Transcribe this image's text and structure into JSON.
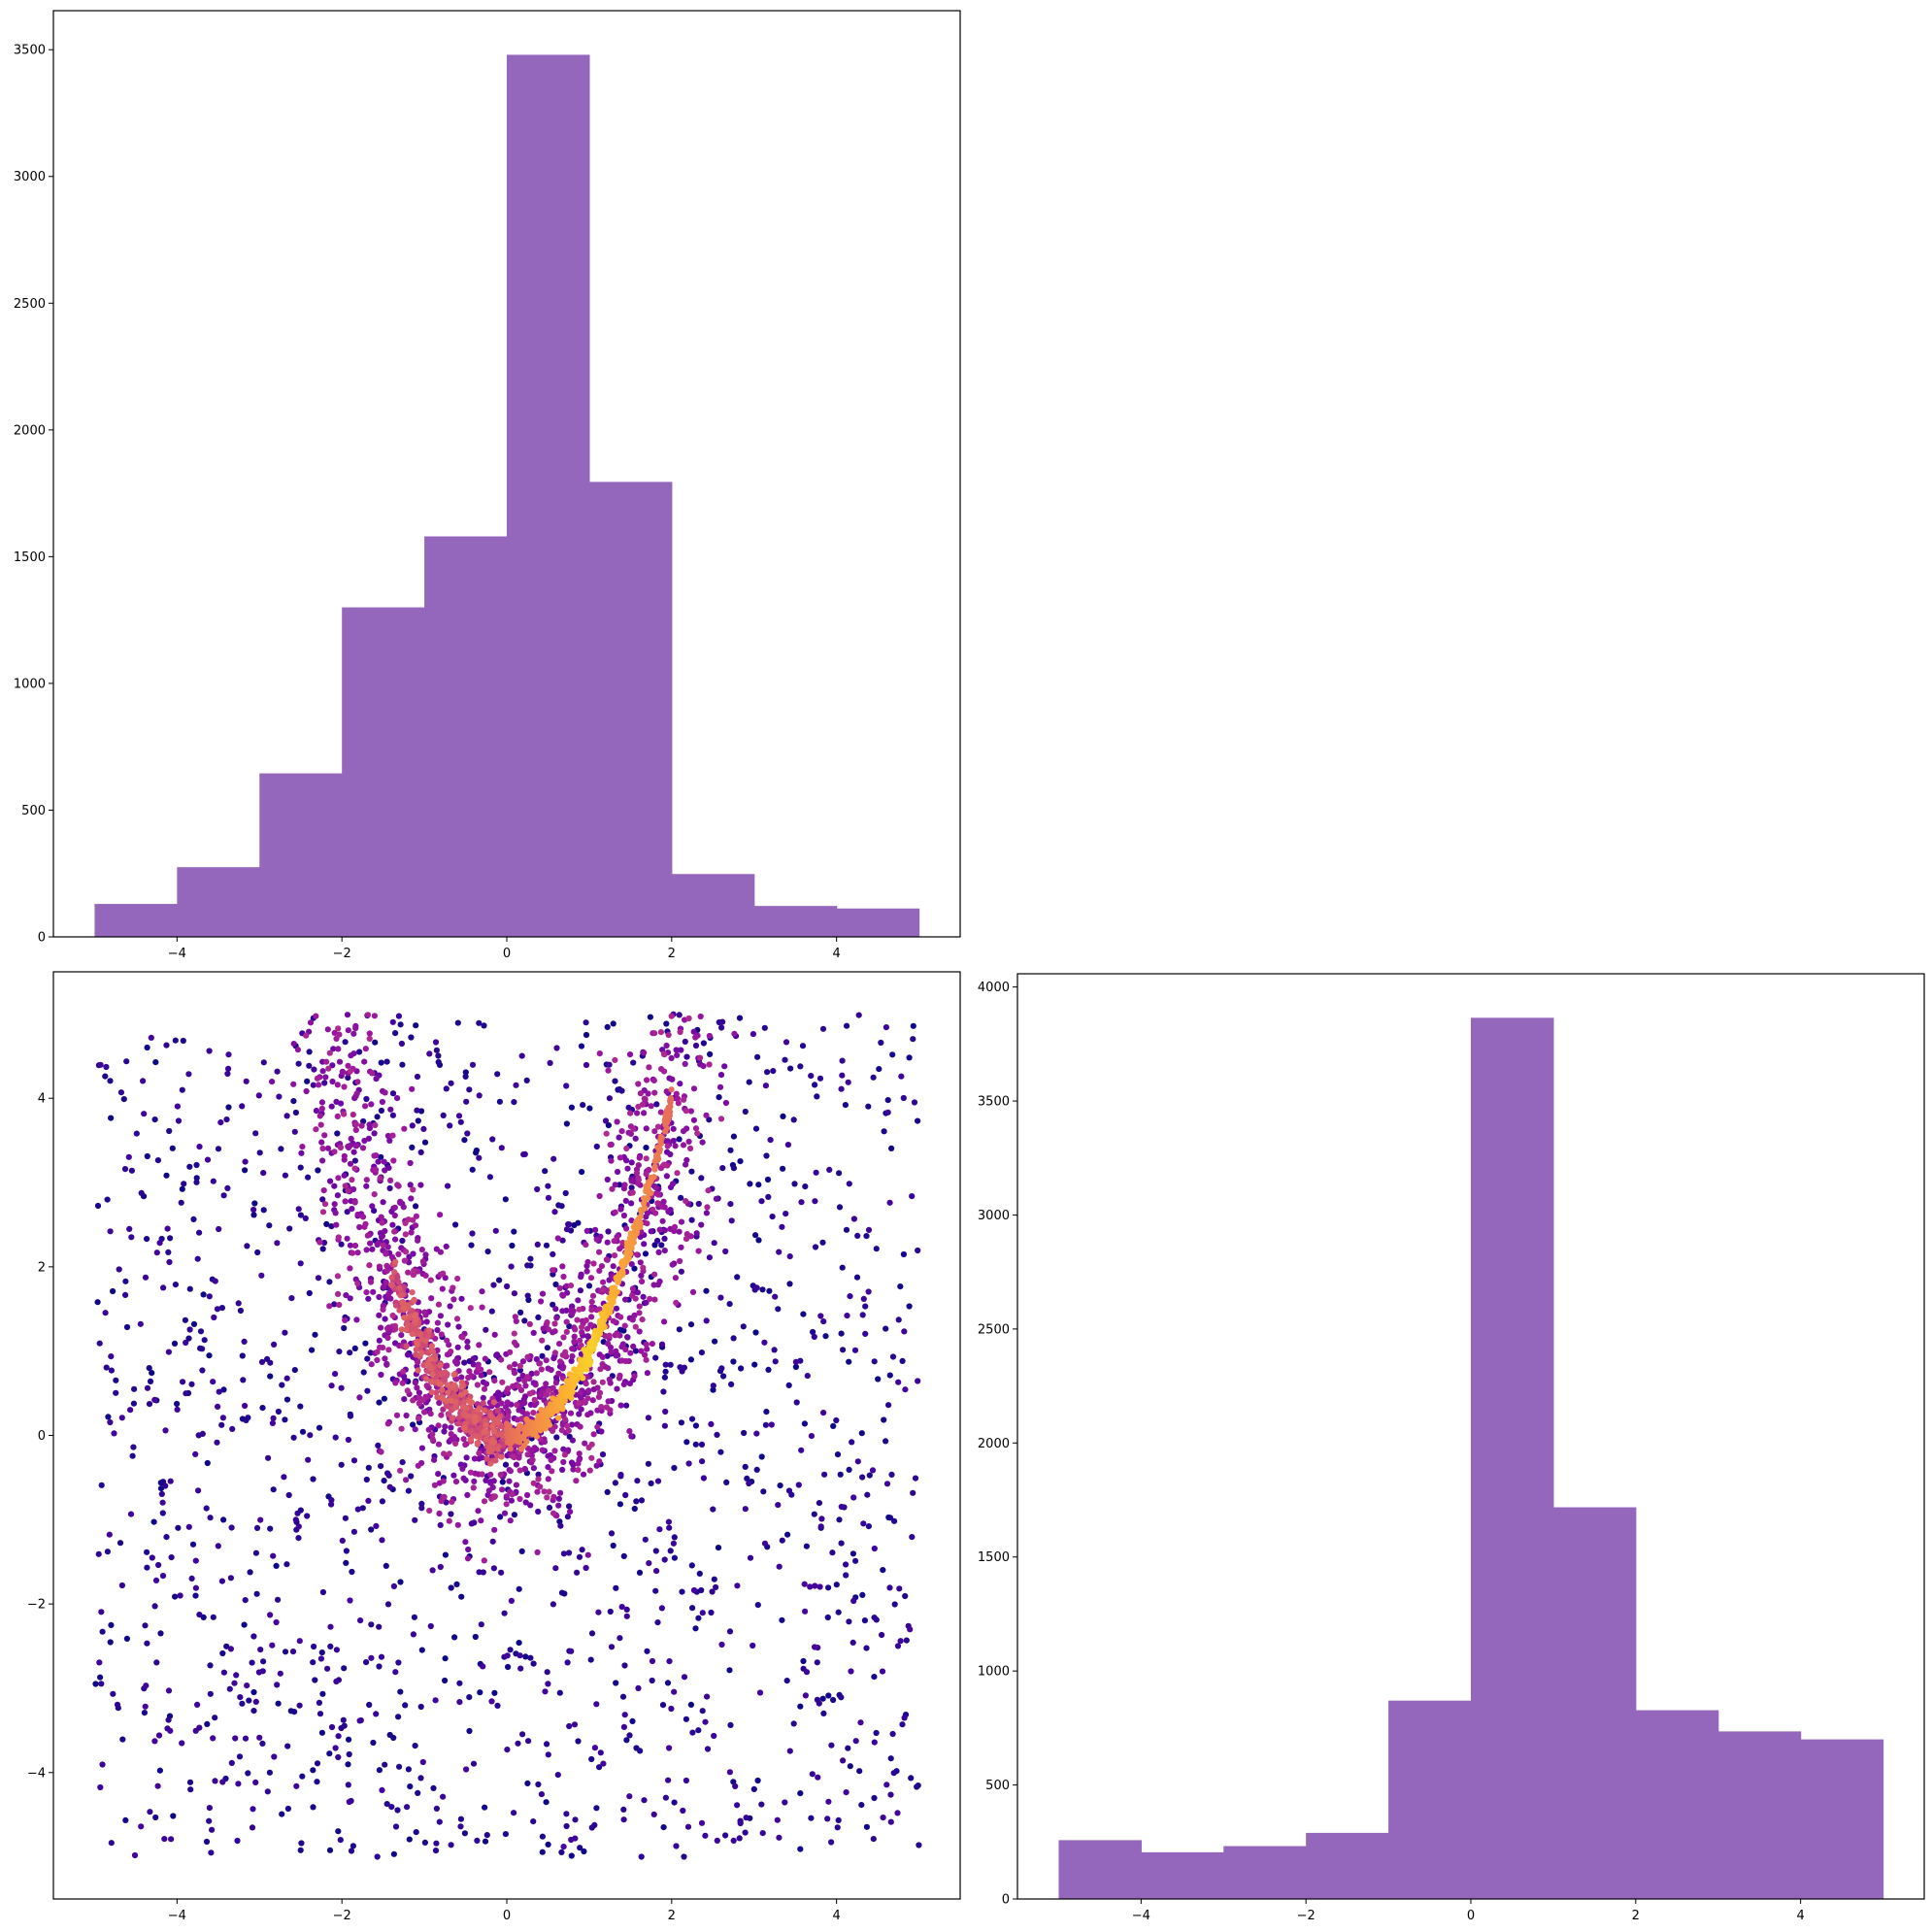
{
  "chart_data": [
    {
      "id": "hist-top-left",
      "type": "bar",
      "subtype": "histogram",
      "title": "",
      "xlabel": "",
      "ylabel": "",
      "bin_edges": [
        -5,
        -4,
        -3,
        -2,
        -1,
        0,
        1,
        2,
        3,
        4,
        5
      ],
      "values": [
        130,
        275,
        645,
        1300,
        1580,
        3480,
        1795,
        248,
        122,
        112
      ],
      "xlim": [
        -5.5,
        5.5
      ],
      "ylim": [
        0,
        3654
      ],
      "xticks": [
        -4,
        -2,
        0,
        2,
        4
      ],
      "yticks": [
        0,
        500,
        1000,
        1500,
        2000,
        2500,
        3000,
        3500
      ],
      "xtick_labels": [
        "−4",
        "−2",
        "0",
        "2",
        "4"
      ],
      "ytick_labels": [
        "0",
        "500",
        "1000",
        "1500",
        "2000",
        "2500",
        "3000",
        "3500"
      ],
      "color": "#9467bd",
      "grid": false
    },
    {
      "id": "scatter-bottom-left",
      "type": "scatter",
      "title": "",
      "xlabel": "",
      "ylabel": "",
      "description": "points colored by local density (plasma colormap): a dense parabola-like band y≈x² from about (-2, 4.8) through (0, 0) to (2, 4.5), plus uniform background noise over [-5, 5] × [-5, 5]",
      "xlim": [
        -5.5,
        5.5
      ],
      "ylim": [
        -5.5,
        5.5
      ],
      "xticks": [
        -4,
        -2,
        0,
        2,
        4
      ],
      "yticks": [
        -4,
        -2,
        0,
        2,
        4
      ],
      "xtick_labels": [
        "−4",
        "−2",
        "0",
        "2",
        "4"
      ],
      "ytick_labels": [
        "−4",
        "−2",
        "0",
        "2",
        "4"
      ],
      "colormap": [
        "#0d0887",
        "#5c01a6",
        "#9c179e",
        "#cc4778",
        "#ed7953",
        "#fdb42f",
        "#f0f921"
      ],
      "grid": false
    },
    {
      "id": "hist-bottom-right",
      "type": "bar",
      "subtype": "histogram",
      "title": "",
      "xlabel": "",
      "ylabel": "",
      "bin_edges": [
        -5,
        -4,
        -3,
        -2,
        -1,
        0,
        1,
        2,
        3,
        4,
        5
      ],
      "values": [
        258,
        205,
        232,
        290,
        870,
        3865,
        1718,
        828,
        735,
        700
      ],
      "xlim": [
        -5.5,
        5.5
      ],
      "ylim": [
        0,
        4058
      ],
      "xticks": [
        -4,
        -2,
        0,
        2,
        4
      ],
      "yticks": [
        0,
        500,
        1000,
        1500,
        2000,
        2500,
        3000,
        3500,
        4000
      ],
      "xtick_labels": [
        "−4",
        "−2",
        "0",
        "2",
        "4"
      ],
      "ytick_labels": [
        "0",
        "500",
        "1000",
        "1500",
        "2000",
        "2500",
        "3000",
        "3500",
        "4000"
      ],
      "color": "#9467bd",
      "grid": false
    }
  ]
}
